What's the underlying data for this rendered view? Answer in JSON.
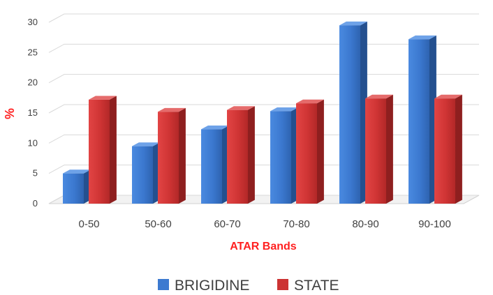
{
  "chart_data": {
    "type": "bar",
    "title": "",
    "xlabel": "ATAR Bands",
    "ylabel": "%",
    "categories": [
      "0-50",
      "50-60",
      "60-70",
      "70-80",
      "80-90",
      "90-100"
    ],
    "series": [
      {
        "name": "BRIGIDINE",
        "values": [
          5,
          9.5,
          12.3,
          15.3,
          29.5,
          27.2
        ],
        "color": "#3d7ad0"
      },
      {
        "name": "STATE",
        "values": [
          17.2,
          15.2,
          15.5,
          16.6,
          17.4,
          17.4
        ],
        "color": "#cc3333"
      }
    ],
    "ylim": [
      0,
      30
    ],
    "yticks": [
      0,
      5,
      10,
      15,
      20,
      25,
      30
    ],
    "grid": true,
    "legend": "bottom",
    "style": "3d-clustered-column"
  }
}
